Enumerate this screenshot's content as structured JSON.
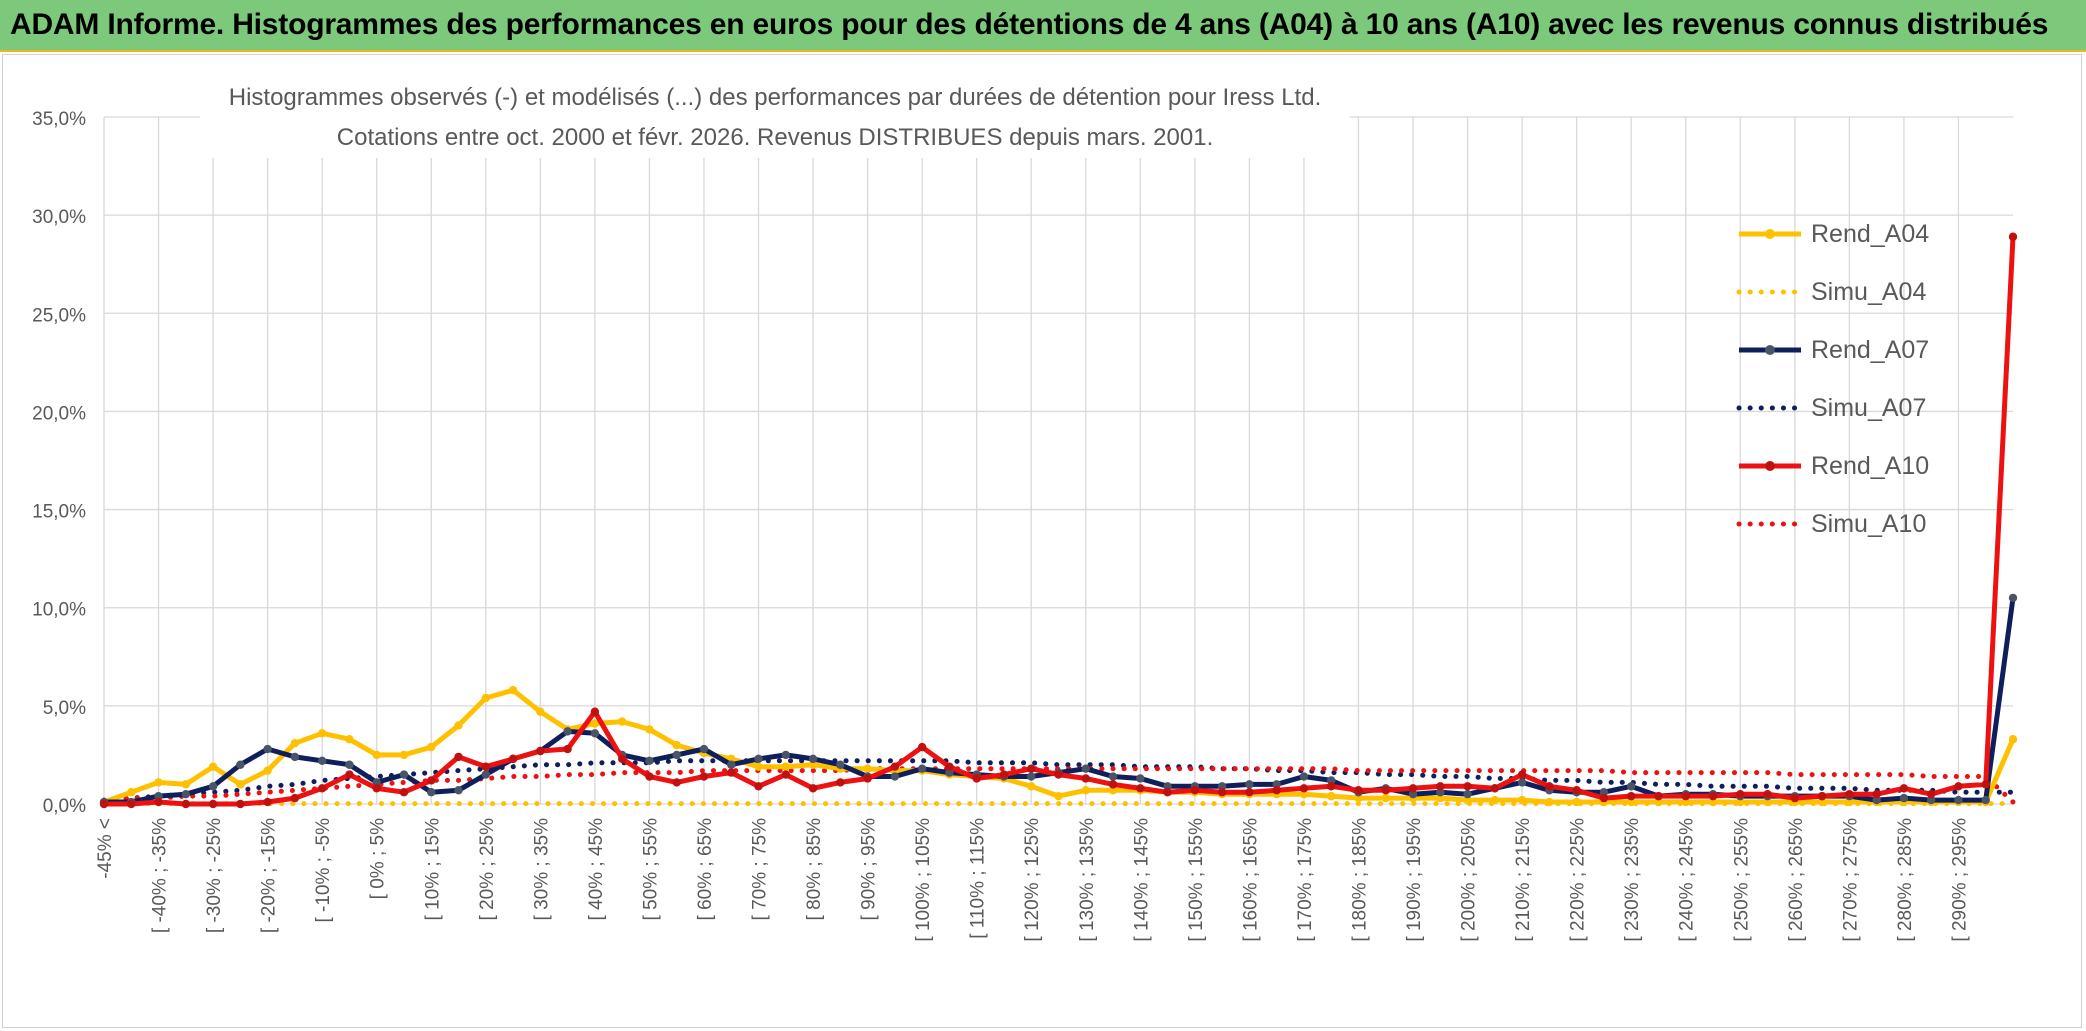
{
  "header": {
    "title": "ADAM Informe. Histogrammes des performances en euros pour des détentions de 4 ans (A04) à 10 ans (A10) avec les revenus connus distribués"
  },
  "chart_data": {
    "type": "line",
    "title_line1": "Histogrammes observés (-) et modélisés (...) des performances par durées de détention pour Iress Ltd.",
    "title_line2": "Cotations entre oct. 2000 et févr. 2026. Revenus DISTRIBUES depuis mars. 2001.",
    "xlabel": "",
    "ylabel": "",
    "ylim": [
      0,
      35
    ],
    "yticks": [
      "0,0%",
      "5,0%",
      "10,0%",
      "15,0%",
      "20,0%",
      "25,0%",
      "30,0%",
      "35,0%"
    ],
    "grid": true,
    "legend_position": "right",
    "categories": [
      "-45% <",
      "[ -45% ; -40%",
      "[ -40% ; -35%",
      "[ -35% ; -30%",
      "[ -30% ; -25%",
      "[ -25% ; -20%",
      "[ -20% ; -15%",
      "[ -15% ; -10%",
      "[ -10% ; -5%",
      "[ -5% ; 0%",
      "[ 0% ; 5%",
      "[ 5% ; 10%",
      "[ 10% ; 15%",
      "[ 15% ; 20%",
      "[ 20% ; 25%",
      "[ 25% ; 30%",
      "[ 30% ; 35%",
      "[ 35% ; 40%",
      "[ 40% ; 45%",
      "[ 45% ; 50%",
      "[ 50% ; 55%",
      "[ 55% ; 60%",
      "[ 60% ; 65%",
      "[ 65% ; 70%",
      "[ 70% ; 75%",
      "[ 75% ; 80%",
      "[ 80% ; 85%",
      "[ 85% ; 90%",
      "[ 90% ; 95%",
      "[ 95% ; 100%",
      "[ 100% ; 105%",
      "[ 105% ; 110%",
      "[ 110% ; 115%",
      "[ 115% ; 120%",
      "[ 120% ; 125%",
      "[ 125% ; 130%",
      "[ 130% ; 135%",
      "[ 135% ; 140%",
      "[ 140% ; 145%",
      "[ 145% ; 150%",
      "[ 150% ; 155%",
      "[ 155% ; 160%",
      "[ 160% ; 165%",
      "[ 165% ; 170%",
      "[ 170% ; 175%",
      "[ 175% ; 180%",
      "[ 180% ; 185%",
      "[ 185% ; 190%",
      "[ 190% ; 195%",
      "[ 195% ; 200%",
      "[ 200% ; 205%",
      "[ 205% ; 210%",
      "[ 210% ; 215%",
      "[ 215% ; 220%",
      "[ 220% ; 225%",
      "[ 225% ; 230%",
      "[ 230% ; 235%",
      "[ 235% ; 240%",
      "[ 240% ; 245%",
      "[ 245% ; 250%",
      "[ 250% ; 255%",
      "[ 255% ; 260%",
      "[ 260% ; 265%",
      "[ 265% ; 270%",
      "[ 270% ; 275%",
      "[ 275% ; 280%",
      "[ 280% ; 285%",
      "[ 285% ; 290%",
      "[ 290% ; 295%",
      "[ 295% ; 300%",
      "> 300%"
    ],
    "shown_tick_labels": [
      "-45% <",
      "[ -40% ; -35%",
      "[ -30% ; -25%",
      "[ -20% ; -15%",
      "[ -10% ; -5%",
      "[ 0% ; 5%",
      "[ 10% ; 15%",
      "[ 20% ; 25%",
      "[ 30% ; 35%",
      "[ 40% ; 45%",
      "[ 50% ; 55%",
      "[ 60% ; 65%",
      "[ 70% ; 75%",
      "[ 80% ; 85%",
      "[ 90% ; 95%",
      "[ 100% ; 105%",
      "[ 110% ; 115%",
      "[ 120% ; 125%",
      "[ 130% ; 135%",
      "[ 140% ; 145%",
      "[ 150% ; 155%",
      "[ 160% ; 165%",
      "[ 170% ; 175%",
      "[ 180% ; 185%",
      "[ 190% ; 195%",
      "[ 200% ; 205%",
      "[ 210% ; 215%",
      "[ 220% ; 225%",
      "[ 230% ; 235%",
      "[ 240% ; 245%",
      "[ 250% ; 255%",
      "[ 260% ; 265%",
      "[ 270% ; 275%",
      "[ 280% ; 285%",
      "[ 290% ; 295%"
    ],
    "series": [
      {
        "name": "Rend_A04",
        "color": "#ffc000",
        "style": "solid",
        "marker": true,
        "values": [
          0.1,
          0.6,
          1.1,
          1.0,
          1.9,
          1.0,
          1.7,
          3.1,
          3.6,
          3.3,
          2.5,
          2.5,
          2.9,
          4.0,
          5.4,
          5.8,
          4.7,
          3.8,
          4.1,
          4.2,
          3.8,
          3.0,
          2.6,
          2.3,
          1.9,
          1.9,
          2.0,
          1.8,
          1.8,
          1.7,
          1.7,
          1.5,
          1.4,
          1.3,
          0.9,
          0.4,
          0.7,
          0.7,
          0.7,
          0.6,
          0.6,
          0.5,
          0.5,
          0.5,
          0.5,
          0.4,
          0.3,
          0.3,
          0.3,
          0.3,
          0.2,
          0.2,
          0.2,
          0.1,
          0.1,
          0.1,
          0.1,
          0.1,
          0.1,
          0.1,
          0.1,
          0.1,
          0.1,
          0.1,
          0.1,
          0.1,
          0.1,
          0.1,
          0.1,
          0.1,
          3.3
        ]
      },
      {
        "name": "Simu_A04",
        "color": "#ffc000",
        "style": "dotted",
        "marker": false,
        "values": [
          0.02,
          0.02,
          0.02,
          0.02,
          0.02,
          0.02,
          0.02,
          0.02,
          0.02,
          0.02,
          0.02,
          0.02,
          0.02,
          0.02,
          0.02,
          0.02,
          0.02,
          0.02,
          0.02,
          0.02,
          0.02,
          0.02,
          0.02,
          0.02,
          0.02,
          0.02,
          0.02,
          0.02,
          0.02,
          0.02,
          0.02,
          0.02,
          0.02,
          0.02,
          0.02,
          0.02,
          0.02,
          0.02,
          0.02,
          0.02,
          0.02,
          0.02,
          0.02,
          0.02,
          0.02,
          0.02,
          0.02,
          0.02,
          0.02,
          0.02,
          0.02,
          0.02,
          0.02,
          0.02,
          0.02,
          0.02,
          0.02,
          0.02,
          0.02,
          0.02,
          0.02,
          0.02,
          0.02,
          0.02,
          0.02,
          0.02,
          0.02,
          0.02,
          0.02,
          0.02,
          0.02
        ]
      },
      {
        "name": "Rend_A07",
        "color": "#0f1f5c",
        "style": "solid",
        "marker": true,
        "values": [
          0.1,
          0.1,
          0.4,
          0.5,
          0.9,
          2.0,
          2.8,
          2.4,
          2.2,
          2.0,
          1.1,
          1.5,
          0.6,
          0.7,
          1.5,
          2.3,
          2.7,
          3.7,
          3.6,
          2.5,
          2.2,
          2.5,
          2.8,
          2.0,
          2.3,
          2.5,
          2.3,
          2.0,
          1.4,
          1.4,
          1.8,
          1.6,
          1.5,
          1.4,
          1.4,
          1.6,
          1.8,
          1.4,
          1.3,
          0.9,
          0.9,
          0.9,
          1.0,
          1.0,
          1.4,
          1.2,
          0.6,
          0.8,
          0.5,
          0.6,
          0.5,
          0.8,
          1.1,
          0.7,
          0.6,
          0.6,
          0.9,
          0.4,
          0.5,
          0.5,
          0.4,
          0.4,
          0.4,
          0.4,
          0.4,
          0.2,
          0.3,
          0.2,
          0.2,
          0.2,
          10.5
        ]
      },
      {
        "name": "Simu_A07",
        "color": "#0f1f5c",
        "style": "dotted",
        "marker": false,
        "values": [
          0.2,
          0.3,
          0.4,
          0.5,
          0.6,
          0.7,
          0.9,
          1.0,
          1.2,
          1.3,
          1.4,
          1.5,
          1.6,
          1.7,
          1.8,
          1.9,
          2.0,
          2.0,
          2.1,
          2.1,
          2.1,
          2.2,
          2.2,
          2.2,
          2.2,
          2.2,
          2.2,
          2.2,
          2.2,
          2.2,
          2.2,
          2.2,
          2.1,
          2.1,
          2.1,
          2.0,
          2.0,
          2.0,
          1.9,
          1.9,
          1.9,
          1.8,
          1.8,
          1.7,
          1.7,
          1.6,
          1.6,
          1.5,
          1.5,
          1.4,
          1.4,
          1.3,
          1.3,
          1.2,
          1.2,
          1.1,
          1.1,
          1.0,
          1.0,
          0.9,
          0.9,
          0.9,
          0.8,
          0.8,
          0.8,
          0.7,
          0.7,
          0.7,
          0.6,
          0.6,
          0.6
        ]
      },
      {
        "name": "Rend_A10",
        "color": "#ee1111",
        "style": "solid",
        "marker": true,
        "values": [
          0.0,
          0.0,
          0.1,
          0.0,
          0.0,
          0.0,
          0.1,
          0.3,
          0.8,
          1.5,
          0.8,
          0.6,
          1.2,
          2.4,
          1.9,
          2.3,
          2.7,
          2.8,
          4.7,
          2.3,
          1.4,
          1.1,
          1.4,
          1.6,
          0.9,
          1.5,
          0.8,
          1.1,
          1.3,
          1.9,
          2.9,
          1.9,
          1.3,
          1.5,
          1.8,
          1.5,
          1.3,
          1.0,
          0.8,
          0.6,
          0.7,
          0.6,
          0.6,
          0.7,
          0.8,
          0.9,
          0.7,
          0.7,
          0.8,
          0.9,
          0.9,
          0.8,
          1.5,
          0.9,
          0.7,
          0.3,
          0.4,
          0.4,
          0.4,
          0.4,
          0.5,
          0.5,
          0.3,
          0.4,
          0.5,
          0.5,
          0.8,
          0.5,
          0.9,
          1.0,
          28.9
        ]
      },
      {
        "name": "Simu_A10",
        "color": "#ee1111",
        "style": "dotted",
        "marker": false,
        "values": [
          0.2,
          0.3,
          0.3,
          0.4,
          0.4,
          0.5,
          0.6,
          0.7,
          0.8,
          0.9,
          1.0,
          1.1,
          1.2,
          1.2,
          1.3,
          1.4,
          1.4,
          1.5,
          1.5,
          1.6,
          1.6,
          1.6,
          1.7,
          1.7,
          1.7,
          1.7,
          1.7,
          1.7,
          1.8,
          1.8,
          1.8,
          1.8,
          1.8,
          1.8,
          1.8,
          1.8,
          1.8,
          1.8,
          1.8,
          1.8,
          1.8,
          1.8,
          1.8,
          1.8,
          1.8,
          1.8,
          1.7,
          1.7,
          1.7,
          1.7,
          1.7,
          1.7,
          1.7,
          1.7,
          1.7,
          1.7,
          1.6,
          1.6,
          1.6,
          1.6,
          1.6,
          1.6,
          1.5,
          1.5,
          1.5,
          1.5,
          1.5,
          1.4,
          1.4,
          1.4,
          0.1
        ]
      }
    ]
  }
}
